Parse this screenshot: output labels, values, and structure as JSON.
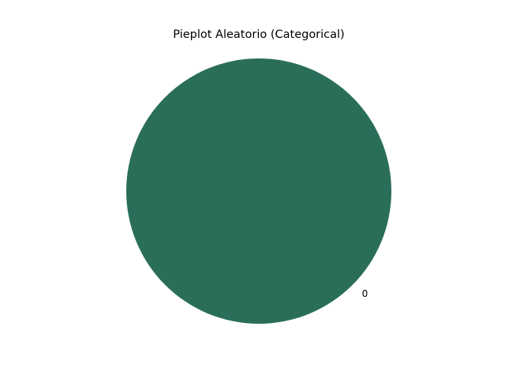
{
  "chart_data": {
    "type": "pie",
    "title": "Pieplot Aleatorio (Categorical)",
    "categories": [
      "0"
    ],
    "values": [
      100
    ],
    "colors": [
      "#2a6e5a"
    ],
    "start_angle_deg": 0,
    "counterclockwise": true
  }
}
